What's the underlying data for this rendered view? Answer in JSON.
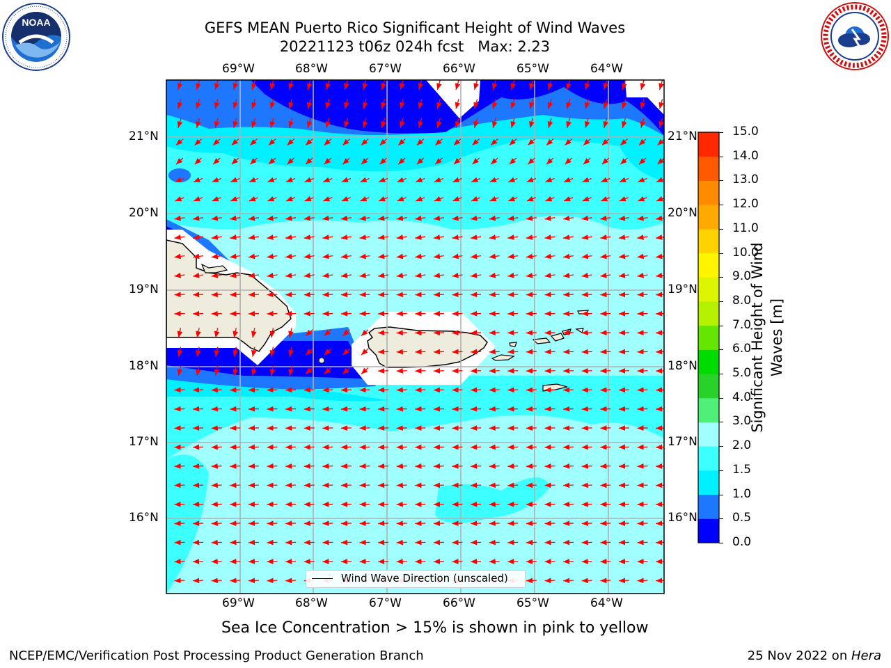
{
  "title": {
    "line1": "GEFS MEAN Puerto Rico Significant Height of Wind Waves",
    "line2": "20221123 t06z 024h fcst   Max: 2.23"
  },
  "logos": {
    "left": {
      "text": "NOAA",
      "ring_text": "NATIONAL OCEANIC AND ATMOSPHERIC ADMINISTRATION · U.S. DEPARTMENT OF COMMERCE"
    },
    "right": {
      "ring_text": "NATIONAL WEATHER SERVICE"
    }
  },
  "map": {
    "lon_labels": [
      "69°W",
      "68°W",
      "67°W",
      "66°W",
      "65°W",
      "64°W"
    ],
    "lat_labels": [
      "21°N",
      "20°N",
      "19°N",
      "18°N",
      "17°N",
      "16°N"
    ],
    "legend_label": "Wind Wave Direction (unscaled)",
    "arrow_color": "#ff0000",
    "land_color": "#eeecdc"
  },
  "colorbar": {
    "label_line1": "Significant Height of Wind",
    "label_line2": "Waves [m]",
    "ticks": [
      "0.0",
      "0.5",
      "1.0",
      "1.5",
      "2.0",
      "3.0",
      "4.0",
      "5.0",
      "6.0",
      "7.0",
      "8.0",
      "9.0",
      "10.0",
      "11.0",
      "12.0",
      "13.0",
      "14.0",
      "15.0"
    ],
    "colors": [
      "#0000ff",
      "#1e78ff",
      "#00f0ff",
      "#3cffff",
      "#a0ffff",
      "#50f078",
      "#28d228",
      "#00dc00",
      "#64e600",
      "#b4f000",
      "#dcf500",
      "#fff500",
      "#ffd200",
      "#ffaa00",
      "#ff8c00",
      "#ff5a00",
      "#ff2800"
    ]
  },
  "footer": {
    "sea_ice": "Sea Ice Concentration > 15% is shown in pink to yellow",
    "left": "NCEP/EMC/Verification Post Processing Product Generation Branch",
    "right_prefix": "25 Nov 2022 on ",
    "right_host": "Hera"
  }
}
